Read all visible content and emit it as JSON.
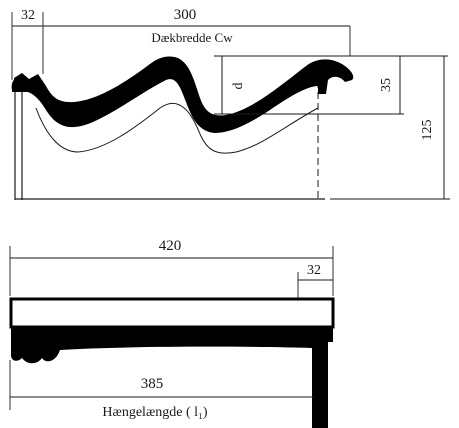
{
  "cross_section": {
    "dim_overlap": "32",
    "dim_cover_width": "300",
    "cover_width_label": "Dækbredde Cw",
    "dim_depth_symbol": "d",
    "dim_depth": "35",
    "dim_height": "125"
  },
  "side_view": {
    "dim_total_length": "420",
    "dim_overlap": "32",
    "dim_hang_length": "385",
    "hang_length_label": "Hængelængde ( l₁)"
  }
}
